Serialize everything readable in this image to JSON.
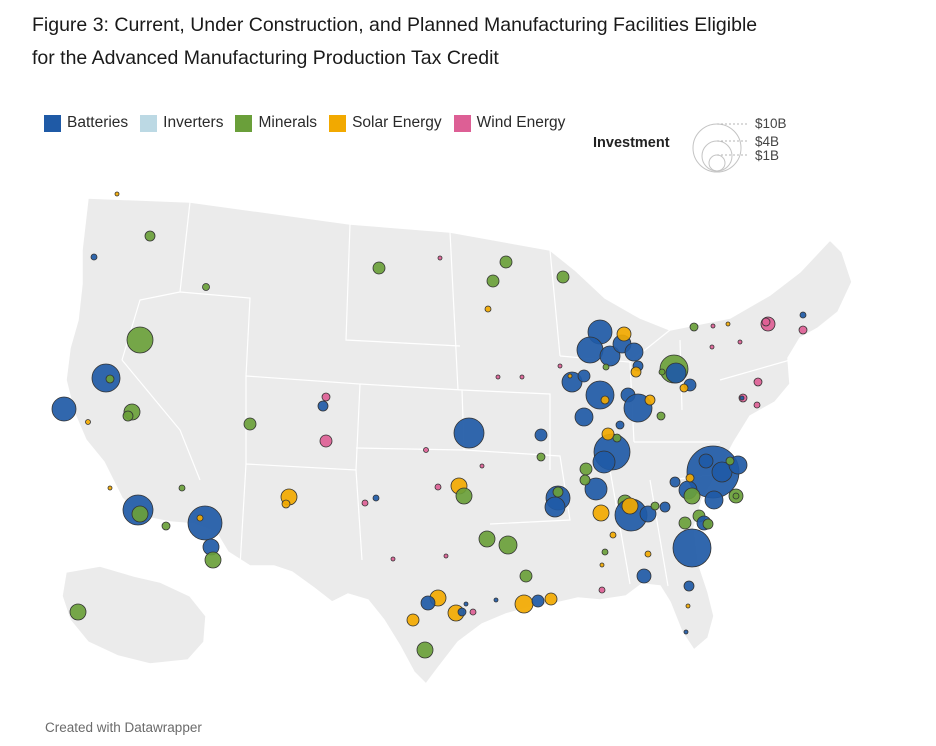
{
  "title_line1": "Figure 3: Current, Under Construction, and Planned Manufacturing Facilities Eligible",
  "title_line2": "for the Advanced Manufacturing Production Tax Credit",
  "legend": [
    {
      "label": "Batteries",
      "color": "#1f5aa6"
    },
    {
      "label": "Inverters",
      "color": "#bcd9e4"
    },
    {
      "label": "Minerals",
      "color": "#6a9f3a"
    },
    {
      "label": "Solar Energy",
      "color": "#f2a900"
    },
    {
      "label": "Wind Energy",
      "color": "#dd5f95"
    }
  ],
  "size_legend": {
    "title": "Investment",
    "labels": [
      "$10B",
      "$4B",
      "$1B"
    ]
  },
  "credit": "Created with Datawrapper",
  "facility_categories": [
    "Batteries",
    "Inverters",
    "Minerals",
    "Solar Energy",
    "Wind Energy"
  ]
}
